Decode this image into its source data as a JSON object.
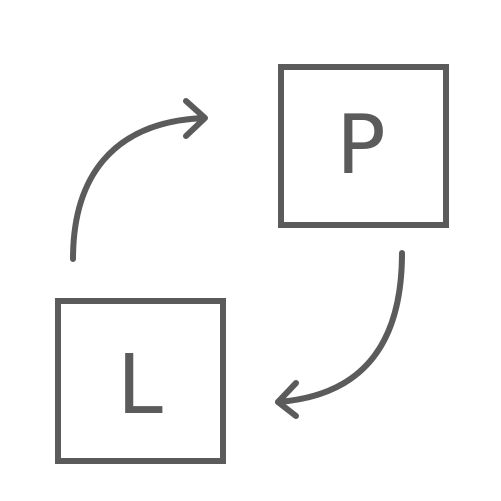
{
  "icon": {
    "name": "swap-icon",
    "color": "#5b5b5b",
    "boxes": [
      {
        "id": "top-right",
        "letter": "P"
      },
      {
        "id": "bottom-left",
        "letter": "L"
      }
    ],
    "arrows": [
      {
        "id": "up-arrow",
        "direction": "from-bottom-left-to-top-right"
      },
      {
        "id": "down-arrow",
        "direction": "from-top-right-to-bottom-left"
      }
    ]
  }
}
